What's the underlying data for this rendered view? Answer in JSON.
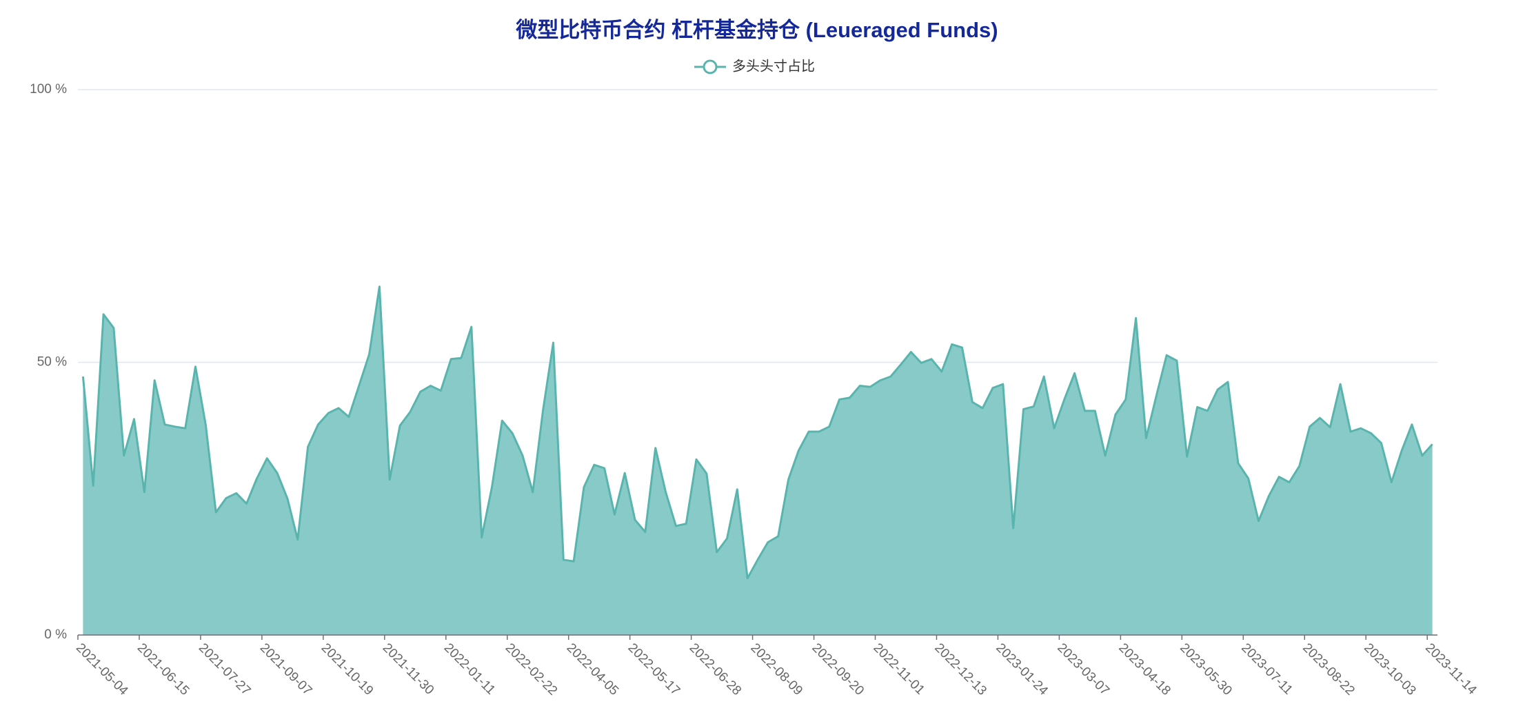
{
  "chart_data": {
    "type": "area",
    "title": "微型比特币合约 杠杆基金持仓 (Leueraged Funds)",
    "categories": [
      "2021-05-04",
      null,
      null,
      null,
      null,
      null,
      "2021-06-15",
      null,
      null,
      null,
      null,
      null,
      "2021-07-27",
      null,
      null,
      null,
      null,
      null,
      "2021-09-07",
      null,
      null,
      null,
      null,
      null,
      "2021-10-19",
      null,
      null,
      null,
      null,
      null,
      "2021-11-30",
      null,
      null,
      null,
      null,
      null,
      "2022-01-11",
      null,
      null,
      null,
      null,
      null,
      "2022-02-22",
      null,
      null,
      null,
      null,
      null,
      "2022-04-05",
      null,
      null,
      null,
      null,
      null,
      "2022-05-17",
      null,
      null,
      null,
      null,
      null,
      "2022-06-28",
      null,
      null,
      null,
      null,
      null,
      "2022-08-09",
      null,
      null,
      null,
      null,
      null,
      "2022-09-20",
      null,
      null,
      null,
      null,
      null,
      "2022-11-01",
      null,
      null,
      null,
      null,
      null,
      "2022-12-13",
      null,
      null,
      null,
      null,
      null,
      "2023-01-24",
      null,
      null,
      null,
      null,
      null,
      "2023-03-07",
      null,
      null,
      null,
      null,
      null,
      "2023-04-18",
      null,
      null,
      null,
      null,
      null,
      "2023-05-30",
      null,
      null,
      null,
      null,
      null,
      "2023-07-11",
      null,
      null,
      null,
      null,
      null,
      "2023-08-22",
      null,
      null,
      null,
      null,
      null,
      "2023-10-03",
      null,
      null,
      null,
      null,
      null,
      "2023-11-14"
    ],
    "series": [
      {
        "name": "多头头寸占比",
        "color": "#5ab4ae",
        "fill": "#88cac7",
        "values": [
          47.4,
          27.4,
          58.8,
          56.3,
          32.9,
          39.6,
          26.2,
          46.7,
          38.6,
          38.2,
          37.9,
          49.2,
          38.6,
          22.5,
          25.1,
          26.0,
          24.1,
          28.7,
          32.4,
          29.7,
          25.0,
          17.5,
          34.5,
          38.6,
          40.7,
          41.6,
          40.0,
          45.7,
          51.5,
          63.9,
          28.5,
          38.4,
          40.9,
          44.6,
          45.7,
          44.8,
          50.6,
          50.8,
          56.5,
          17.9,
          27.1,
          39.3,
          37.0,
          32.9,
          26.2,
          41.2,
          53.6,
          13.8,
          13.5,
          27.1,
          31.2,
          30.6,
          22.1,
          29.7,
          21.1,
          18.9,
          34.3,
          26.2,
          20.0,
          20.4,
          32.2,
          29.6,
          15.2,
          17.7,
          26.7,
          10.4,
          13.8,
          17.0,
          18.1,
          28.5,
          33.8,
          37.3,
          37.3,
          38.2,
          43.2,
          43.5,
          45.7,
          45.5,
          46.7,
          47.4,
          49.6,
          51.9,
          49.9,
          50.6,
          48.3,
          53.3,
          52.7,
          42.7,
          41.6,
          45.3,
          46.0,
          19.6,
          41.4,
          41.9,
          47.4,
          37.9,
          43.2,
          48.0,
          41.1,
          41.1,
          32.9,
          40.4,
          43.2,
          58.1,
          36.1,
          43.9,
          51.3,
          50.3,
          32.7,
          41.8,
          41.1,
          45.0,
          46.4,
          31.5,
          28.7,
          20.9,
          25.5,
          29.0,
          28.0,
          31.0,
          38.2,
          39.8,
          38.1,
          46.0,
          37.3,
          37.9,
          37.0,
          35.2,
          28.0,
          33.8,
          38.6,
          32.9,
          35.0
        ]
      }
    ],
    "ylim": [
      0,
      100
    ],
    "yticks": [
      {
        "value": 0,
        "label": "0 %"
      },
      {
        "value": 50,
        "label": "50 %"
      },
      {
        "value": 100,
        "label": "100 %"
      }
    ],
    "grid": true
  }
}
